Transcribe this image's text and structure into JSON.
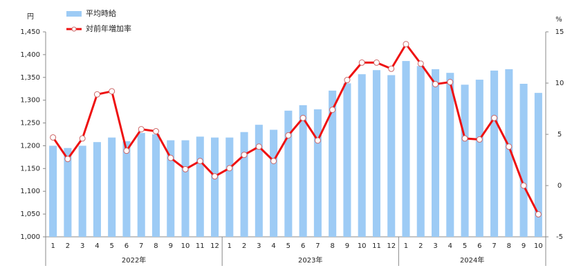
{
  "chart_data": {
    "type": "combo",
    "y_unit": "円",
    "y2_unit": "%",
    "category_groups": [
      {
        "label": "2022年",
        "categories": [
          "1",
          "2",
          "3",
          "4",
          "5",
          "6",
          "7",
          "8",
          "9",
          "10",
          "11",
          "12"
        ]
      },
      {
        "label": "2023年",
        "categories": [
          "1",
          "2",
          "3",
          "4",
          "5",
          "6",
          "7",
          "8",
          "9",
          "10",
          "11",
          "12"
        ]
      },
      {
        "label": "2024年",
        "categories": [
          "1",
          "2",
          "3",
          "4",
          "5",
          "6",
          "7",
          "8",
          "9",
          "10"
        ]
      }
    ],
    "series": [
      {
        "name": "平均時給",
        "type": "bar",
        "color": "#9dcbf5",
        "values": [
          1200,
          1195,
          1200,
          1208,
          1218,
          1210,
          1228,
          1225,
          1212,
          1212,
          1220,
          1218,
          1218,
          1230,
          1246,
          1235,
          1277,
          1289,
          1280,
          1321,
          1337,
          1357,
          1366,
          1355,
          1386,
          1375,
          1368,
          1360,
          1334,
          1345,
          1365,
          1368,
          1336,
          1316
        ]
      },
      {
        "name": "対前年増加率",
        "type": "line",
        "axis": "y2",
        "color": "#ee1111",
        "values": [
          4.7,
          2.6,
          4.6,
          8.9,
          9.2,
          3.4,
          5.5,
          5.3,
          2.7,
          1.6,
          2.4,
          0.9,
          1.7,
          3.0,
          3.8,
          2.4,
          4.9,
          6.6,
          4.4,
          7.4,
          10.3,
          12.0,
          12.0,
          11.4,
          13.8,
          11.9,
          9.9,
          10.1,
          4.6,
          4.5,
          6.6,
          3.8,
          0.0,
          -2.8
        ]
      }
    ],
    "ylim": [
      1000,
      1450
    ],
    "yticks": [
      {
        "value": 1000,
        "label": "1,000"
      },
      {
        "value": 1050,
        "label": "1,050"
      },
      {
        "value": 1100,
        "label": "1,100"
      },
      {
        "value": 1150,
        "label": "1,150"
      },
      {
        "value": 1200,
        "label": "1,200"
      },
      {
        "value": 1250,
        "label": "1,250"
      },
      {
        "value": 1300,
        "label": "1,300"
      },
      {
        "value": 1350,
        "label": "1,350"
      },
      {
        "value": 1400,
        "label": "1,400"
      },
      {
        "value": 1450,
        "label": "1,450"
      }
    ],
    "y2lim": [
      -5,
      15
    ],
    "y2ticks": [
      -5,
      0,
      5,
      10,
      15
    ],
    "grid": false
  }
}
